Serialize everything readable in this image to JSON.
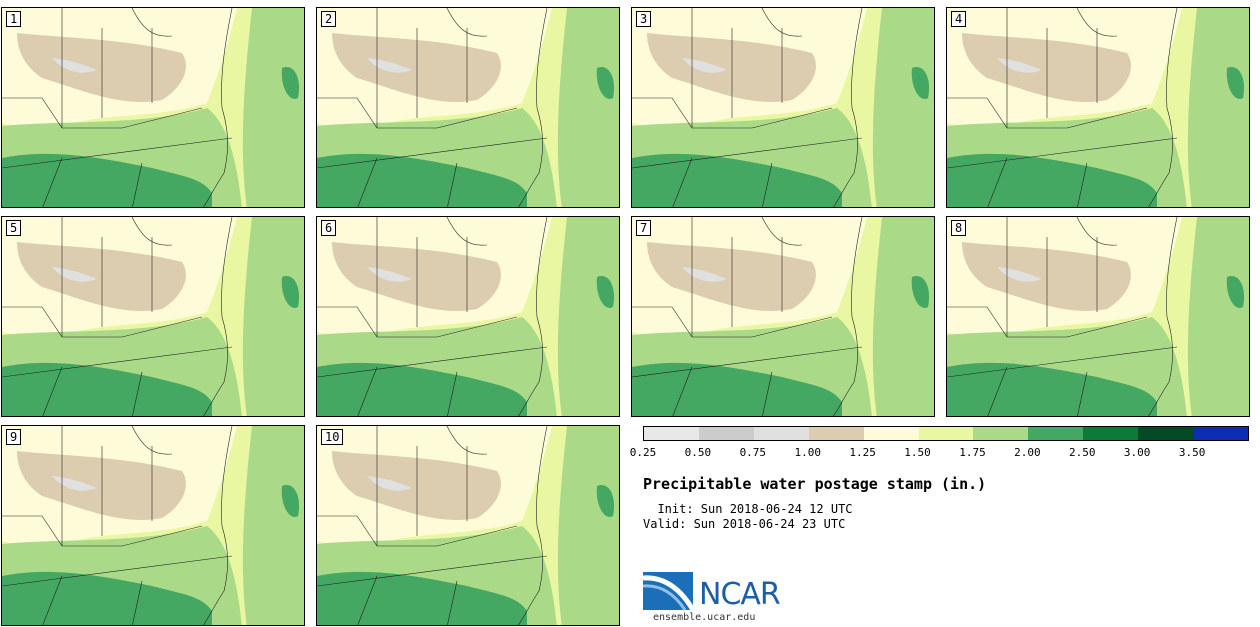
{
  "panels": [
    "1",
    "2",
    "3",
    "4",
    "5",
    "6",
    "7",
    "8",
    "9",
    "10"
  ],
  "legend": {
    "ticks": [
      "0.25",
      "0.50",
      "0.75",
      "1.00",
      "1.25",
      "1.50",
      "1.75",
      "2.00",
      "2.50",
      "3.00",
      "3.50"
    ],
    "colors": [
      "#e8e8e8",
      "#cccccc",
      "#e0e0e0",
      "#dccdb0",
      "#fefcd8",
      "#e9f7a3",
      "#aada88",
      "#44a862",
      "#0d7a3a",
      "#044a24",
      "#0b2fb0"
    ]
  },
  "title": "Precipitable water postage stamp (in.)",
  "init_line": "  Init: Sun 2018-06-24 12 UTC",
  "valid_line": "Valid: Sun 2018-06-24 23 UTC",
  "logo": {
    "text": "NCAR",
    "url": "ensemble.ucar.edu"
  }
}
